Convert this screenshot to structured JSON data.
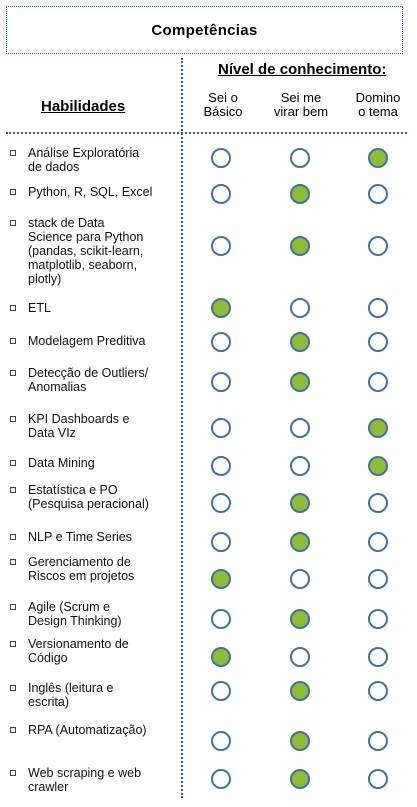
{
  "header": {
    "title": "Competências",
    "level_title": "Nível de conhecimento:",
    "skills_title": "Habilidades",
    "columns": [
      {
        "line1": "Sei o",
        "line2": "Básico"
      },
      {
        "line1": "Sei me",
        "line2": "virar bem"
      },
      {
        "line1": "Domino",
        "line2": "o tema"
      }
    ]
  },
  "colors": {
    "filled": "#8ebc37",
    "ring": "#41719c",
    "dotted_line": "#2f5d86"
  },
  "rows": [
    {
      "lines": [
        "Análise Exploratória",
        "de dados"
      ],
      "level": 3
    },
    {
      "lines": [
        "Python, R,  SQL, Excel"
      ],
      "level": 2
    },
    {
      "lines": [
        "stack de Data",
        "Science para Python",
        "(pandas, scikit-learn,",
        "matplotlib, seaborn,",
        "plotly)"
      ],
      "level": 2
    },
    {
      "lines": [
        "ETL"
      ],
      "level": 1
    },
    {
      "lines": [
        "Modelagem Preditiva"
      ],
      "level": 2
    },
    {
      "lines": [
        "Detecção de Outliers/",
        "Anomalias"
      ],
      "level": 2
    },
    {
      "lines": [
        "KPI Dashboards e",
        "Data VIz"
      ],
      "level": 3
    },
    {
      "lines": [
        "Data Mining"
      ],
      "level": 3
    },
    {
      "lines": [
        "Estatística e PO",
        "(Pesquisa peracional)"
      ],
      "level": 2
    },
    {
      "lines": [
        "NLP e Time Series"
      ],
      "level": 2
    },
    {
      "lines": [
        "Gerenciamento de",
        "Riscos em projetos"
      ],
      "level": 1
    },
    {
      "lines": [
        "Agile (Scrum e",
        "Design Thinking)"
      ],
      "level": 2
    },
    {
      "lines": [
        "Versionamento de",
        "Código"
      ],
      "level": 1
    },
    {
      "lines": [
        "Inglês (leitura e",
        "escrita)"
      ],
      "level": 2
    },
    {
      "lines": [
        "RPA (Automatização)"
      ],
      "level": 2
    },
    {
      "lines": [
        "Web scraping e web",
        "crawler"
      ],
      "level": 2
    }
  ]
}
